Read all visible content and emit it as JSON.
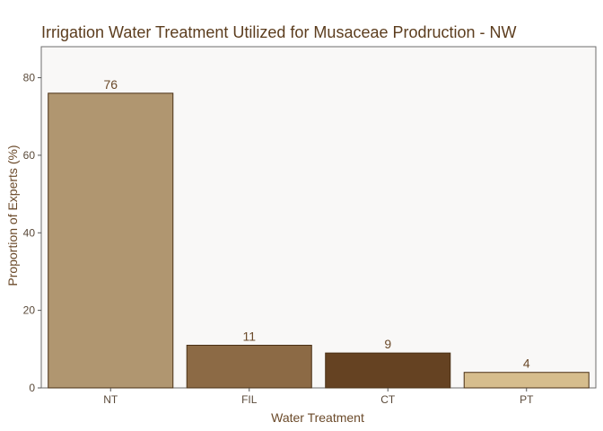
{
  "chart_data": {
    "type": "bar",
    "title": "Irrigation Water Treatment Utilized for Musaceae Prodruction -  NW",
    "xlabel": "Water Treatment",
    "ylabel": "Proportion of Experts (%)",
    "categories": [
      "NT",
      "FIL",
      "CT",
      "PT"
    ],
    "values": [
      76,
      11,
      9,
      4
    ],
    "value_labels": [
      "76",
      "11",
      "9",
      "4"
    ],
    "bar_colors": [
      "#B09670",
      "#8C6A45",
      "#654222",
      "#D6BD8D"
    ],
    "bar_outline_color": "#4A3015",
    "ylim": [
      0,
      88
    ],
    "yticks": [
      0,
      20,
      40,
      60,
      80
    ],
    "ytick_labels": [
      "0",
      "20",
      "40",
      "60",
      "80"
    ],
    "grid": false,
    "legend": "none",
    "panel_background": "#F9F8F7",
    "panel_border_color": "#6E6E6E"
  }
}
